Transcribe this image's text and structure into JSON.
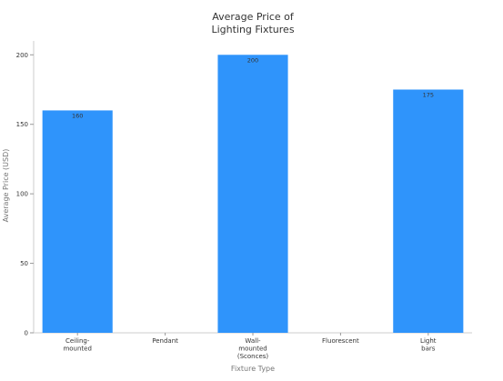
{
  "chart_data": {
    "type": "bar",
    "title_lines": [
      "Average Price of",
      "Lighting Fixtures"
    ],
    "xlabel": "Fixture Type",
    "ylabel": "Average Price (USD)",
    "ylim": [
      0,
      210
    ],
    "yticks": [
      0,
      50,
      100,
      150,
      200
    ],
    "grid": false,
    "categories": [
      {
        "lines": [
          "Ceiling-",
          "mounted"
        ]
      },
      {
        "lines": [
          "Pendant"
        ]
      },
      {
        "lines": [
          "Wall-",
          "mounted",
          "(Sconces)"
        ]
      },
      {
        "lines": [
          "Fluorescent"
        ]
      },
      {
        "lines": [
          "Light",
          "bars"
        ]
      }
    ],
    "values": [
      160,
      null,
      200,
      null,
      175
    ],
    "value_labels": [
      "160",
      "",
      "200",
      "",
      "175"
    ],
    "bar_color": "#2f94fb",
    "text_color": "#333333",
    "axis_color": "#cccccc"
  }
}
